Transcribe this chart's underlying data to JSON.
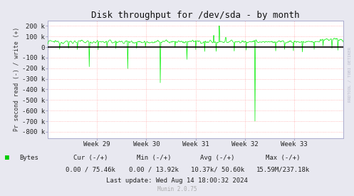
{
  "title": "Disk throughput for /dev/sda - by month",
  "ylabel": "Pr second read (-) / write (+)",
  "background_color": "#e8e8f0",
  "plot_bg_color": "#ffffff",
  "grid_color": "#ffaaaa",
  "line_color": "#00ee00",
  "zero_line_color": "#000000",
  "ytick_vals": [
    200000,
    100000,
    0,
    -100000,
    -200000,
    -300000,
    -400000,
    -500000,
    -600000,
    -700000,
    -800000
  ],
  "ytick_labels": [
    "200 k",
    "100 k",
    "0",
    "-100 k",
    "-200 k",
    "-300 k",
    "-400 k",
    "-500 k",
    "-600 k",
    "-700 k",
    "-800 k"
  ],
  "ylim": [
    -860000,
    250000
  ],
  "xtick_labels": [
    "Week 29",
    "Week 30",
    "Week 31",
    "Week 32",
    "Week 33"
  ],
  "legend_label": "Bytes",
  "legend_color": "#00cc00",
  "cur_label": "Cur (-/+)",
  "cur_val": "0.00 / 75.46k",
  "min_label": "Min (-/+)",
  "min_val": "0.00 / 13.92k",
  "avg_label": "Avg (-/+)",
  "avg_val": "10.37k/ 50.60k",
  "max_label": "Max (-/+)",
  "max_val": "15.59M/237.18k",
  "last_update": "Last update: Wed Aug 14 18:00:32 2024",
  "munin_label": "Munin 2.0.75",
  "rrdtool_label": "RRDTOOL / TOBI OETIKER",
  "title_fontsize": 9,
  "axis_fontsize": 6.5,
  "stats_fontsize": 6.5,
  "n_points": 800
}
